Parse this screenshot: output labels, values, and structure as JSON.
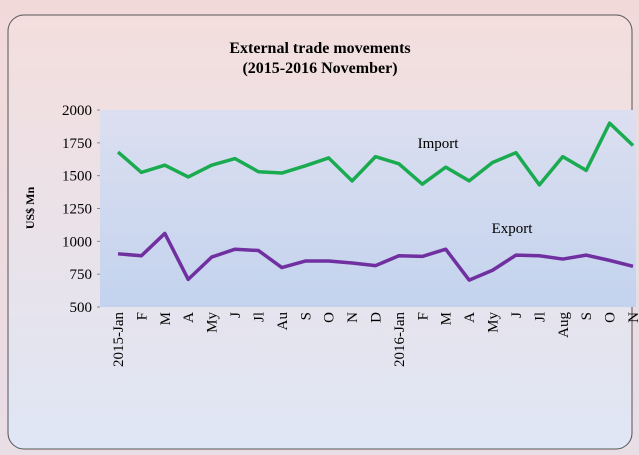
{
  "chart_data": {
    "type": "line",
    "title": "External trade movements",
    "subtitle": "(2015-2016 November)",
    "y_label": "US$ Mn",
    "categories": [
      "2015-Jan",
      "F",
      "M",
      "A",
      "My",
      "J",
      "Jl",
      "Au",
      "S",
      "O",
      "N",
      "D",
      "2016-Jan",
      "F",
      "M",
      "A",
      "My",
      "J",
      "Jl",
      "Aug",
      "S",
      "O",
      "N"
    ],
    "series": [
      {
        "name": "Import",
        "color": "#1aab50",
        "values": [
          1680,
          1525,
          1580,
          1490,
          1580,
          1630,
          1530,
          1520,
          1575,
          1635,
          1460,
          1645,
          1590,
          1435,
          1565,
          1460,
          1600,
          1675,
          1430,
          1645,
          1540,
          1900,
          1730
        ]
      },
      {
        "name": "Export",
        "color": "#7030a0",
        "values": [
          905,
          890,
          1060,
          710,
          880,
          940,
          930,
          800,
          850,
          850,
          835,
          815,
          890,
          885,
          940,
          705,
          780,
          895,
          890,
          865,
          895,
          855,
          810
        ]
      }
    ],
    "ylim": [
      500,
      2000
    ],
    "yticks": [
      500,
      750,
      1000,
      1250,
      1500,
      1750,
      2000
    ],
    "legend": "annotation"
  }
}
